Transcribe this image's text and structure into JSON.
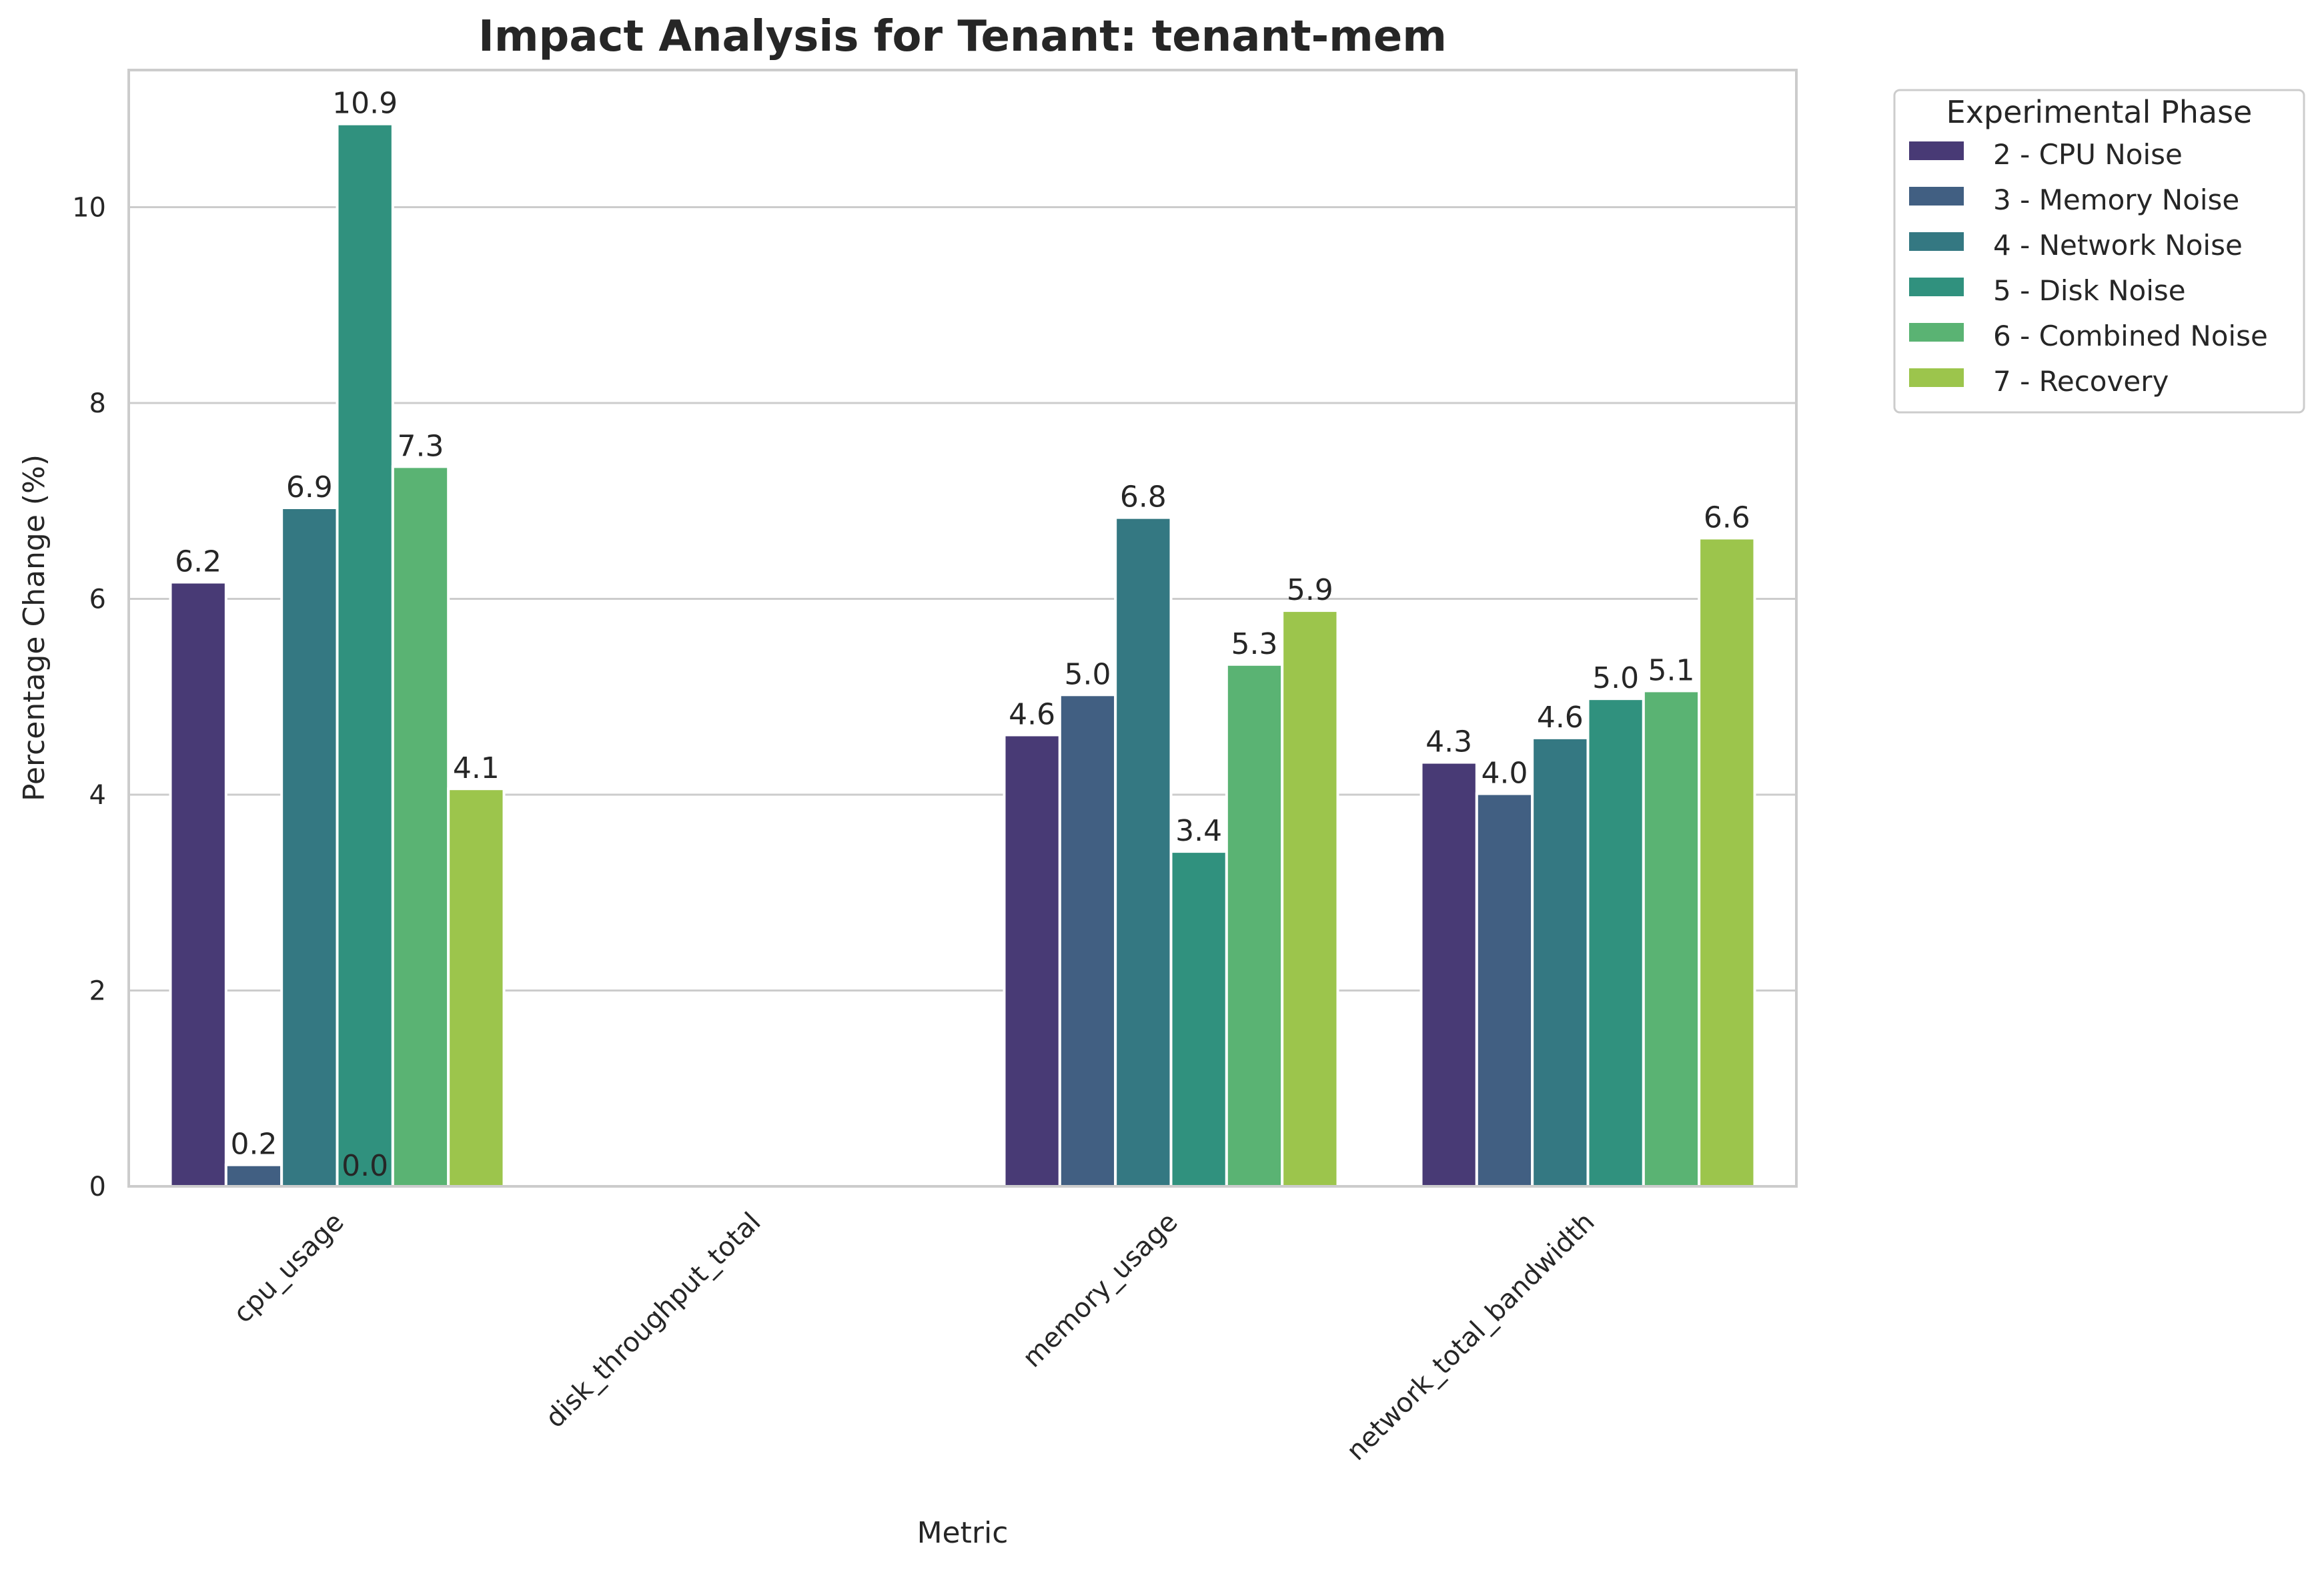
{
  "chart_data": {
    "type": "bar",
    "title": "Impact Analysis for Tenant: tenant-mem",
    "xlabel": "Metric",
    "ylabel": "Percentage Change (%)",
    "categories": [
      "cpu_usage",
      "disk_throughput_total",
      "memory_usage",
      "network_total_bandwidth"
    ],
    "ylim": [
      0,
      11.4
    ],
    "yticks": [
      0,
      2,
      4,
      6,
      8,
      10
    ],
    "grid": true,
    "legend": {
      "title": "Experimental Phase",
      "placement": "outside-top-right"
    },
    "series": [
      {
        "name": "2 - CPU Noise",
        "color": "#483a75",
        "values": [
          6.17,
          null,
          4.61,
          4.33
        ],
        "labels": [
          "6.2",
          null,
          "4.6",
          "4.3"
        ]
      },
      {
        "name": "3 - Memory Noise",
        "color": "#415f82",
        "values": [
          0.22,
          null,
          5.02,
          4.01
        ],
        "labels": [
          "0.2",
          null,
          "5.0",
          "4.0"
        ]
      },
      {
        "name": "4 - Network Noise",
        "color": "#347882",
        "values": [
          6.93,
          null,
          6.83,
          4.58
        ],
        "labels": [
          "6.9",
          null,
          "6.8",
          "4.6"
        ]
      },
      {
        "name": "5 - Disk Noise",
        "color": "#30917e",
        "values": [
          10.85,
          null,
          3.42,
          4.98
        ],
        "labels": [
          "10.9",
          null,
          "3.4",
          "5.0"
        ]
      },
      {
        "name": "6 - Combined Noise",
        "color": "#5ab373",
        "values": [
          7.35,
          null,
          5.33,
          5.06
        ],
        "labels": [
          "7.3",
          null,
          "5.3",
          "5.1"
        ]
      },
      {
        "name": "7 - Recovery",
        "color": "#9cc54c",
        "values": [
          4.06,
          null,
          5.88,
          6.62
        ],
        "labels": [
          "4.1",
          null,
          "5.9",
          "6.6"
        ]
      }
    ],
    "extra_labels": [
      {
        "category": "cpu_usage",
        "series": "5 - Disk Noise",
        "text": "0.0"
      }
    ]
  }
}
